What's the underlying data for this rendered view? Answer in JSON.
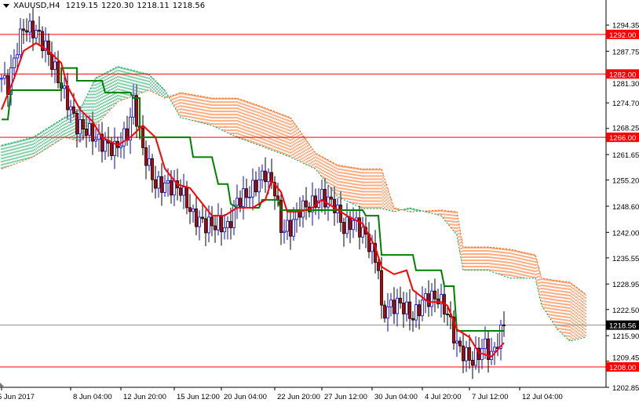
{
  "header": {
    "symbol": "XAUUSD,H4",
    "open": "1219.15",
    "high": "1220.30",
    "low": "1218.11",
    "close": "1218.56"
  },
  "colors": {
    "bull": "#0000ff",
    "bear": "#000000",
    "bear_fill": "#cc0000",
    "tenkan": "#ff0000",
    "kijun": "#008000",
    "cloud_up": "#00a050",
    "cloud_down": "#ff5a00",
    "level_line": "#ff0000",
    "price_line": "#8c8c8c"
  },
  "chart_data": {
    "type": "candlestick",
    "y_range": [
      1202.85,
      1294.35
    ],
    "y_ticks": [
      "1294.35",
      "1287.75",
      "1281.30",
      "1274.70",
      "1268.25",
      "1261.65",
      "1255.20",
      "1248.60",
      "1242.00",
      "1235.55",
      "1228.95",
      "1222.50",
      "1215.90",
      "1209.45",
      "1202.85"
    ],
    "x_labels": [
      {
        "bar": 0,
        "label": "5 Jun 2017"
      },
      {
        "bar": 22,
        "label": "8 Jun 04:00"
      },
      {
        "bar": 38,
        "label": "12 Jun 20:00"
      },
      {
        "bar": 55,
        "label": "15 Jun 12:00"
      },
      {
        "bar": 70,
        "label": "20 Jun 04:00"
      },
      {
        "bar": 87,
        "label": "22 Jun 20:00"
      },
      {
        "bar": 102,
        "label": "27 Jun 12:00"
      },
      {
        "bar": 118,
        "label": "30 Jun 04:00"
      },
      {
        "bar": 134,
        "label": "4 Jul 20:00"
      },
      {
        "bar": 149,
        "label": "7 Jul 12:00"
      },
      {
        "bar": 165,
        "label": "12 Jul 04:00"
      }
    ],
    "price_path": [
      [
        0,
        1280.9
      ],
      [
        2,
        1279
      ],
      [
        5,
        1288.8
      ],
      [
        7,
        1293.8
      ],
      [
        11,
        1292.7
      ],
      [
        14,
        1288.8
      ],
      [
        17,
        1282.9
      ],
      [
        20,
        1277
      ],
      [
        24,
        1269
      ],
      [
        27,
        1268
      ],
      [
        31,
        1265
      ],
      [
        36,
        1263
      ],
      [
        40,
        1267
      ],
      [
        42,
        1275
      ],
      [
        45,
        1263
      ],
      [
        49,
        1254
      ],
      [
        52,
        1254
      ],
      [
        57,
        1253
      ],
      [
        61,
        1246
      ],
      [
        65,
        1244
      ],
      [
        69,
        1244
      ],
      [
        72,
        1243
      ],
      [
        75,
        1250
      ],
      [
        79,
        1252
      ],
      [
        84,
        1257
      ],
      [
        87,
        1253
      ],
      [
        89,
        1243
      ],
      [
        92,
        1243
      ],
      [
        95,
        1248
      ],
      [
        99,
        1249
      ],
      [
        102,
        1251
      ],
      [
        106,
        1249
      ],
      [
        109,
        1243
      ],
      [
        112,
        1245
      ],
      [
        116,
        1241
      ],
      [
        120,
        1233.3
      ],
      [
        121,
        1221.5
      ],
      [
        124,
        1223.5
      ],
      [
        127,
        1224
      ],
      [
        131,
        1220.5
      ],
      [
        135,
        1225.4
      ],
      [
        139,
        1225.4
      ],
      [
        142,
        1221.5
      ],
      [
        145,
        1213.5
      ],
      [
        147,
        1211.6
      ],
      [
        150,
        1209.6
      ],
      [
        154,
        1213.5
      ],
      [
        156,
        1210.6
      ],
      [
        159,
        1216.5
      ],
      [
        160,
        1218.56
      ]
    ],
    "tenkan": [
      [
        0,
        1273
      ],
      [
        4,
        1280.9
      ],
      [
        7,
        1287.8
      ],
      [
        11,
        1289.8
      ],
      [
        15,
        1287.8
      ],
      [
        19,
        1284.8
      ],
      [
        21,
        1278.9
      ],
      [
        25,
        1273
      ],
      [
        29,
        1270
      ],
      [
        32,
        1266
      ],
      [
        37,
        1264
      ],
      [
        41,
        1266
      ],
      [
        45,
        1269
      ],
      [
        49,
        1266
      ],
      [
        52,
        1258.1
      ],
      [
        56,
        1254.1
      ],
      [
        60,
        1253.2
      ],
      [
        64,
        1249.2
      ],
      [
        67,
        1246.2
      ],
      [
        71,
        1246.2
      ],
      [
        75,
        1248.2
      ],
      [
        80,
        1248.2
      ],
      [
        84,
        1250.2
      ],
      [
        86,
        1255.1
      ],
      [
        89,
        1252.2
      ],
      [
        91,
        1247.2
      ],
      [
        95,
        1247.2
      ],
      [
        99,
        1248.2
      ],
      [
        102,
        1250.2
      ],
      [
        106,
        1248.2
      ],
      [
        110,
        1246.2
      ],
      [
        115,
        1244.2
      ],
      [
        119,
        1238.3
      ],
      [
        121,
        1233.3
      ],
      [
        125,
        1231.4
      ],
      [
        129,
        1232.4
      ],
      [
        131,
        1227.4
      ],
      [
        136,
        1224.4
      ],
      [
        140,
        1224.4
      ],
      [
        142,
        1223.5
      ],
      [
        145,
        1217.5
      ],
      [
        149,
        1215.5
      ],
      [
        152,
        1211.6
      ],
      [
        156,
        1210.6
      ],
      [
        160,
        1214.1
      ]
    ],
    "kijun": [
      [
        0,
        1270.5
      ],
      [
        2,
        1270.5
      ],
      [
        3,
        1277.9
      ],
      [
        19,
        1277.9
      ],
      [
        19,
        1283.5
      ],
      [
        24,
        1283.5
      ],
      [
        24,
        1280.3
      ],
      [
        32,
        1280.3
      ],
      [
        33,
        1277.3
      ],
      [
        41,
        1277.3
      ],
      [
        42,
        1275.9
      ],
      [
        44,
        1275.9
      ],
      [
        44,
        1266
      ],
      [
        60,
        1266
      ],
      [
        61,
        1261
      ],
      [
        67,
        1261
      ],
      [
        69,
        1254.2
      ],
      [
        72,
        1254.2
      ],
      [
        73,
        1249.2
      ],
      [
        75,
        1248.2
      ],
      [
        82,
        1248.2
      ],
      [
        83,
        1250.2
      ],
      [
        88,
        1250.2
      ],
      [
        89,
        1247.6
      ],
      [
        115,
        1247.6
      ],
      [
        116,
        1246.2
      ],
      [
        120,
        1246.2
      ],
      [
        121,
        1236.3
      ],
      [
        131,
        1236.3
      ],
      [
        132,
        1232.4
      ],
      [
        140,
        1232.4
      ],
      [
        141,
        1228.4
      ],
      [
        144,
        1228.4
      ],
      [
        145,
        1217.1
      ],
      [
        160,
        1217.1
      ]
    ],
    "span_a": [
      [
        0,
        1264
      ],
      [
        10,
        1266
      ],
      [
        20,
        1271
      ],
      [
        25,
        1273
      ],
      [
        30,
        1281
      ],
      [
        37,
        1283.9
      ],
      [
        47,
        1281.9
      ],
      [
        52,
        1277.9
      ],
      [
        57,
        1271
      ],
      [
        67,
        1269
      ],
      [
        75,
        1266
      ],
      [
        82,
        1264
      ],
      [
        92,
        1261
      ],
      [
        100,
        1258
      ],
      [
        107,
        1251
      ],
      [
        115,
        1248
      ],
      [
        121,
        1248
      ],
      [
        125,
        1247.2
      ],
      [
        130,
        1248.2
      ],
      [
        140,
        1246.2
      ],
      [
        145,
        1241.3
      ],
      [
        147,
        1232.4
      ],
      [
        155,
        1232.4
      ],
      [
        162,
        1230.4
      ],
      [
        170,
        1230.4
      ],
      [
        172,
        1223.5
      ],
      [
        177,
        1217.5
      ],
      [
        181,
        1214.5
      ],
      [
        186,
        1215.5
      ]
    ],
    "span_b": [
      [
        0,
        1258
      ],
      [
        10,
        1261
      ],
      [
        20,
        1266
      ],
      [
        25,
        1265
      ],
      [
        30,
        1269
      ],
      [
        37,
        1275
      ],
      [
        47,
        1277.9
      ],
      [
        52,
        1275.9
      ],
      [
        57,
        1277.3
      ],
      [
        67,
        1275.9
      ],
      [
        75,
        1275.9
      ],
      [
        82,
        1274
      ],
      [
        92,
        1271
      ],
      [
        100,
        1262
      ],
      [
        107,
        1259
      ],
      [
        115,
        1258
      ],
      [
        121,
        1258
      ],
      [
        125,
        1248.2
      ],
      [
        130,
        1247.2
      ],
      [
        140,
        1247.6
      ],
      [
        145,
        1247.2
      ],
      [
        147,
        1238.3
      ],
      [
        155,
        1238.3
      ],
      [
        162,
        1237.7
      ],
      [
        170,
        1236.3
      ],
      [
        172,
        1230.4
      ],
      [
        177,
        1229.8
      ],
      [
        181,
        1229.4
      ],
      [
        186,
        1226.4
      ]
    ],
    "levels": [
      {
        "price": 1292.0,
        "label": "1292.00"
      },
      {
        "price": 1282.0,
        "label": "1282.00"
      },
      {
        "price": 1266.0,
        "label": "1266.00"
      },
      {
        "price": 1208.0,
        "label": "1208.00"
      }
    ],
    "current_price": {
      "price": 1218.56,
      "label": "1218.56"
    }
  }
}
